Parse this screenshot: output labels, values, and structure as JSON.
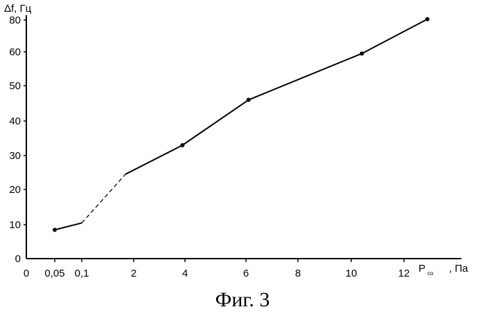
{
  "chart_data": {
    "type": "line",
    "title": "",
    "caption": "Фиг. 3",
    "ylabel": "Δf, Гц",
    "xlabel": {
      "main": "P",
      "subscript": "co",
      "unit": ", Па"
    },
    "ylim": [
      0,
      80
    ],
    "x_ticks": [
      "0",
      "0,05",
      "0,1",
      "2",
      "4",
      "6",
      "8",
      "10",
      "12"
    ],
    "y_ticks": [
      {
        "label": "80",
        "value": 80
      },
      {
        "label": "60",
        "value": 60
      },
      {
        "label": "50",
        "value": 50
      },
      {
        "label": "40",
        "value": 40
      },
      {
        "label": "30",
        "value": 30
      },
      {
        "label": "20",
        "value": 20
      },
      {
        "label": "10",
        "value": 10
      },
      {
        "label": "0",
        "value": 0
      }
    ],
    "grid": false,
    "series": [
      {
        "points": [
          {
            "x": 0.05,
            "y": 8.5,
            "marker": true
          },
          {
            "x": 0.1,
            "y": 10.5,
            "marker": false
          },
          {
            "x": 1.7,
            "y": 24.5,
            "marker": false
          },
          {
            "x": 3.9,
            "y": 33,
            "marker": true
          },
          {
            "x": 6.1,
            "y": 46,
            "marker": true
          },
          {
            "x": 10.4,
            "y": 59.5,
            "marker": true
          },
          {
            "x": 12.9,
            "y": 80.5,
            "marker": true
          }
        ],
        "dashed_segments": [
          1
        ]
      }
    ],
    "dashed_baseline": {
      "from": 0.1,
      "to": 1.7
    }
  }
}
